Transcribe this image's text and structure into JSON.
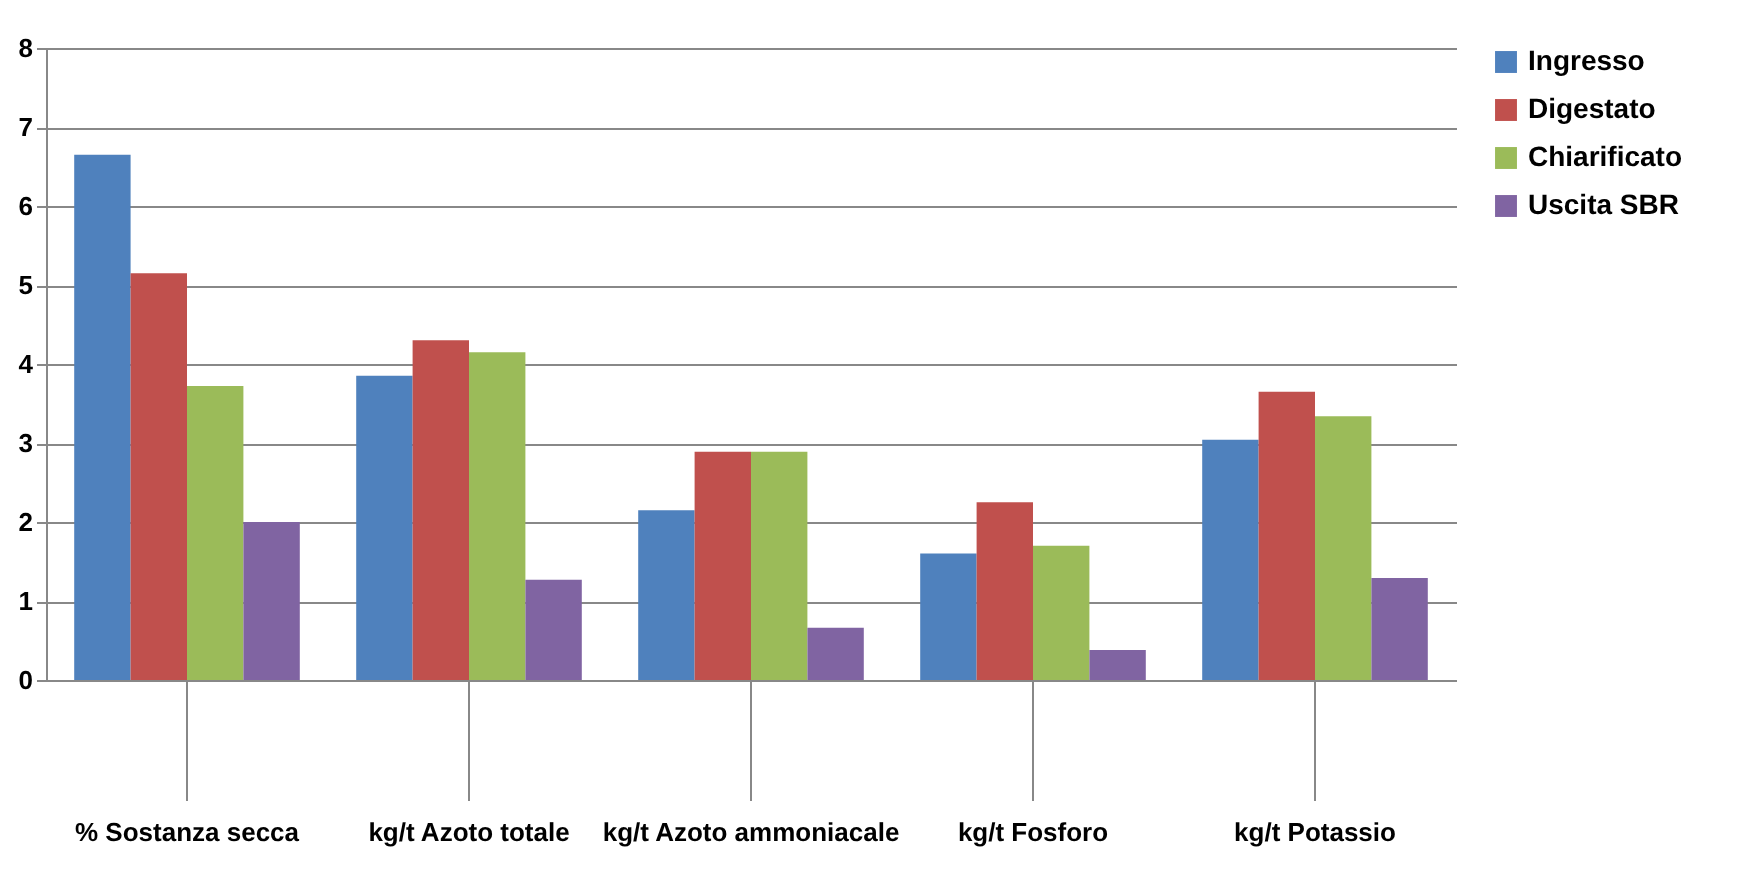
{
  "chart_data": {
    "type": "bar",
    "categories": [
      "%\nSostanza secca",
      "kg/t\nAzoto totale",
      "kg/t\nAzoto\nammoniacale",
      "kg/t\nFosforo",
      "kg/t\nPotassio"
    ],
    "series": [
      {
        "name": "Ingresso",
        "color": "#4f81bd",
        "values": [
          6.65,
          3.85,
          2.15,
          1.6,
          3.04
        ]
      },
      {
        "name": "Digestato",
        "color": "#c0504d",
        "values": [
          5.15,
          4.3,
          2.89,
          2.25,
          3.65
        ]
      },
      {
        "name": "Chiarificato",
        "color": "#9bbb59",
        "values": [
          3.72,
          4.15,
          2.89,
          1.7,
          3.34
        ]
      },
      {
        "name": "Uscita SBR",
        "color": "#8064a2",
        "values": [
          2.0,
          1.27,
          0.66,
          0.38,
          1.29
        ]
      }
    ],
    "ylim": [
      0,
      8
    ],
    "yticks": [
      0,
      1,
      2,
      3,
      4,
      5,
      6,
      7,
      8
    ],
    "grid": "y",
    "legend": "right"
  }
}
